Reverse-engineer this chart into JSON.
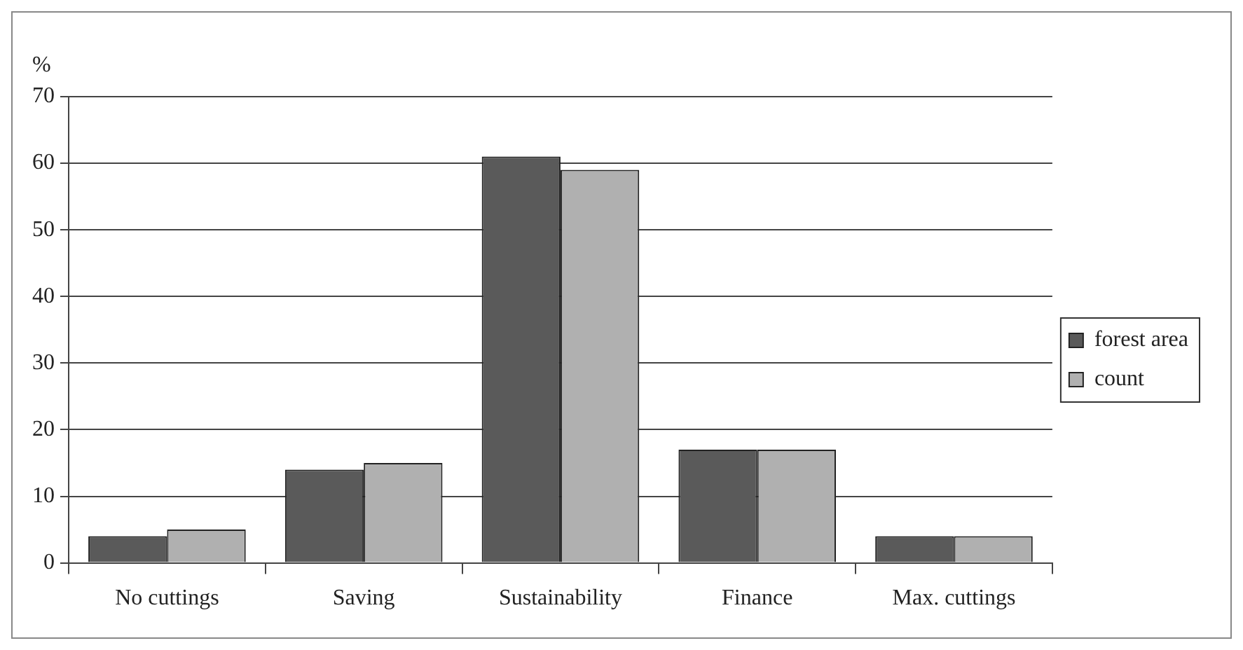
{
  "chart_data": {
    "type": "bar",
    "ylabel": "%",
    "categories": [
      "No cuttings",
      "Saving",
      "Sustainability",
      "Finance",
      "Max. cuttings"
    ],
    "series": [
      {
        "name": "forest area",
        "color": "#5a5a5a",
        "values": [
          4,
          14,
          61,
          17,
          4
        ]
      },
      {
        "name": "count",
        "color": "#b0b0b0",
        "values": [
          5,
          15,
          59,
          17,
          4
        ]
      }
    ],
    "ylim": [
      0,
      70
    ],
    "yticks": [
      0,
      10,
      20,
      30,
      40,
      50,
      60,
      70
    ],
    "grid": "y",
    "legend": "right"
  }
}
